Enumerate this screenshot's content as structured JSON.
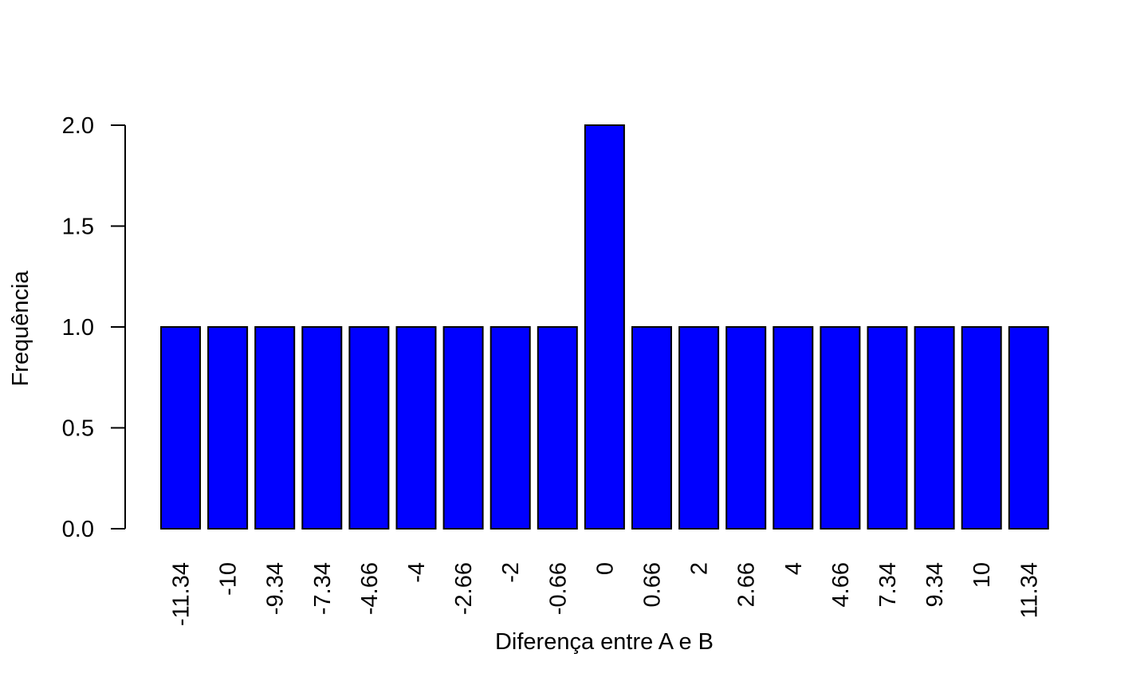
{
  "chart_data": {
    "type": "bar",
    "categories": [
      "-11.34",
      "-10",
      "-9.34",
      "-7.34",
      "-4.66",
      "-4",
      "-2.66",
      "-2",
      "-0.66",
      "0",
      "0.66",
      "2",
      "2.66",
      "4",
      "4.66",
      "7.34",
      "9.34",
      "10",
      "11.34"
    ],
    "values": [
      1,
      1,
      1,
      1,
      1,
      1,
      1,
      1,
      1,
      2,
      1,
      1,
      1,
      1,
      1,
      1,
      1,
      1,
      1
    ],
    "xlabel": "Diferença entre A e B",
    "ylabel": "Frequência",
    "ylim": [
      0,
      2
    ],
    "yticks": [
      "0.0",
      "0.5",
      "1.0",
      "1.5",
      "2.0"
    ],
    "bar_color": "#0000ff",
    "bar_border_color": "#000000",
    "grid": false,
    "x_tick_label_orientation": "vertical"
  }
}
